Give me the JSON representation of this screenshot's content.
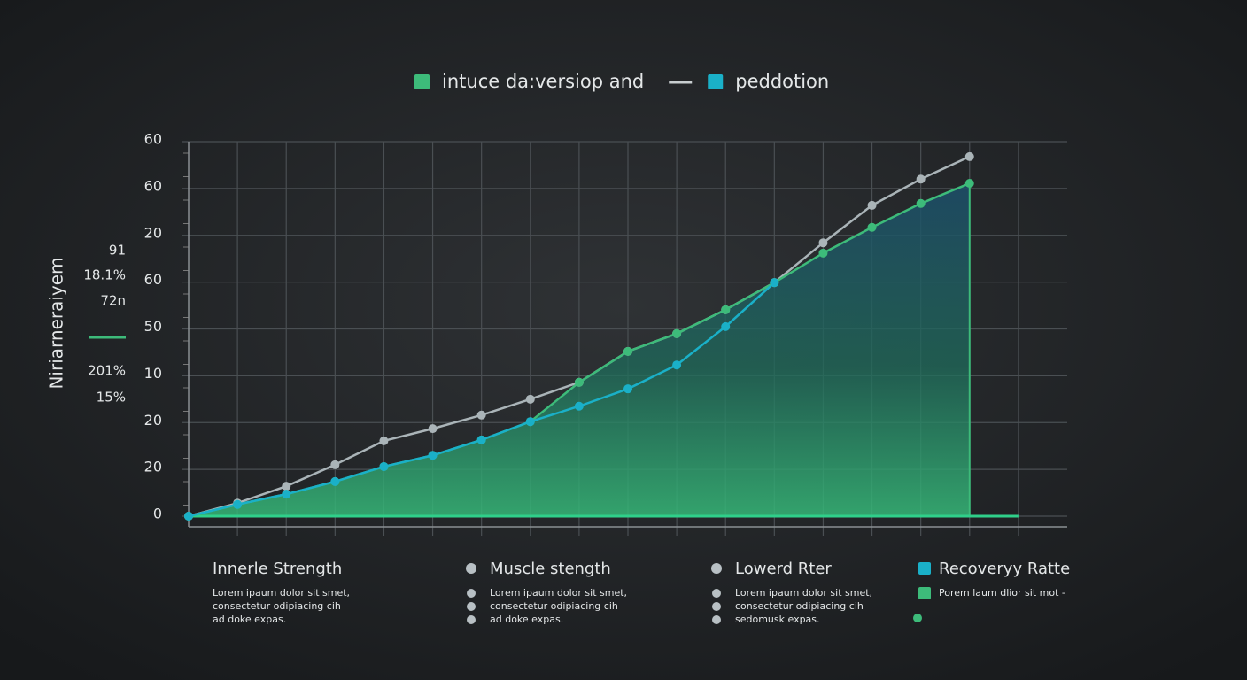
{
  "chart_data": {
    "type": "line",
    "y_label": "Niriarneraiyem",
    "side_labels": [
      "91",
      "18.1%",
      "72n",
      "201%",
      "15%"
    ],
    "x": [
      0,
      1,
      2,
      3,
      4,
      5,
      6,
      7,
      8,
      9,
      10,
      11,
      12,
      13,
      14,
      15,
      16
    ],
    "xlim": [
      0,
      18
    ],
    "xticks": [
      0,
      1,
      2,
      3,
      4,
      5,
      6,
      7,
      8,
      9,
      10,
      11,
      12,
      13,
      14,
      15,
      16,
      17
    ],
    "ylim": [
      0,
      80
    ],
    "yticks": [
      0,
      {
        "value": 10,
        "label": "20"
      },
      {
        "value": 20,
        "label": "20"
      },
      {
        "value": 30,
        "label": "10"
      },
      {
        "value": 40,
        "label": "50"
      },
      {
        "value": 50,
        "label": "60"
      },
      {
        "value": 60,
        "label": "20"
      },
      {
        "value": 70,
        "label": "60"
      },
      {
        "value": 80,
        "label": "60"
      }
    ],
    "grid": true,
    "series": [
      {
        "color": "#aab4b8",
        "values": [
          0,
          2.8,
          6.4,
          11,
          16.1,
          18.7,
          21.6,
          25,
          28.6,
          35.2,
          39,
          44.1,
          49.9,
          58.4,
          66.4,
          72,
          76.8
        ]
      },
      {
        "name": "intuce da:versiop and",
        "color": "#3dbb7a",
        "area": true,
        "values": [
          0,
          2.5,
          4.7,
          7.4,
          10.6,
          13,
          16.3,
          20.2,
          28.6,
          35.2,
          39,
          44.1,
          49.9,
          56.2,
          61.7,
          66.8,
          71.1
        ]
      },
      {
        "name": "peddotion",
        "color": "#1ab0c8",
        "values": [
          0,
          2.5,
          4.7,
          7.4,
          10.6,
          13,
          16.3,
          20.2,
          23.5,
          27.2,
          32.3,
          40.5,
          49.9,
          null,
          null,
          null,
          null
        ]
      }
    ],
    "legend_items": [
      {
        "label": "Innerle Strength",
        "lines": [
          "Lorem ipaum dolor sit smet,",
          "consectetur odipiacing cih",
          "ad doke expas."
        ]
      },
      {
        "label": "Muscle stength",
        "color": "#b8c0c4",
        "lines": [
          "Lorem ipaum dolor sit smet,",
          "consectetur odipiacing cih",
          "ad doke expas."
        ]
      },
      {
        "label": "Lowerd Rter",
        "color": "#b8c0c4",
        "lines": [
          "Lorem ipaum dolor sit smet,",
          "consectetur odipiacing cih",
          "sedomusk expas."
        ]
      },
      {
        "label": "Recoveryy Ratte",
        "color": "#1ab0c8",
        "lines": [
          "Porem laum dlior sit mot -"
        ]
      }
    ]
  }
}
